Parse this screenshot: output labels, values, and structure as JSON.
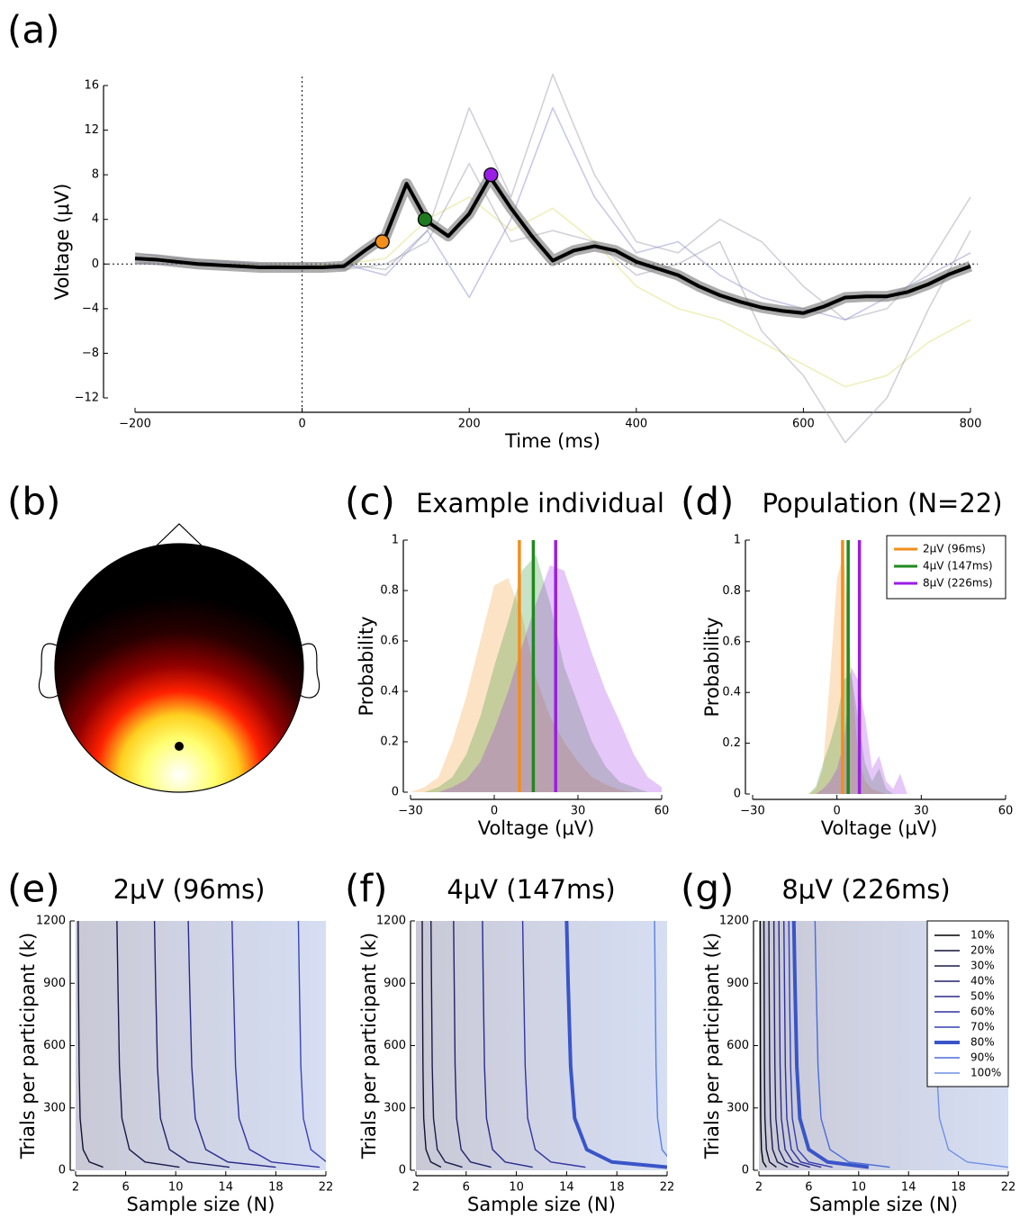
{
  "chart_data": [
    {
      "type": "line",
      "panel_label": "(a)",
      "x_label": "Time (ms)",
      "y_label": "Voltage (μV)",
      "xlim": [
        -200,
        800
      ],
      "ylim": [
        -12,
        16
      ],
      "xticks": [
        {
          "value": -200,
          "label": "−200"
        },
        0,
        200,
        400,
        600,
        800
      ],
      "yticks": [
        {
          "value": -12,
          "label": "−12"
        },
        {
          "value": -8,
          "label": "−8"
        },
        {
          "value": -4,
          "label": "−4"
        },
        0,
        4,
        8,
        12,
        16
      ],
      "reference_lines": {
        "x": 0,
        "y": 0
      },
      "series": [
        {
          "color": "#9a9aaa",
          "opacity": 0.45,
          "x": [
            -200,
            -150,
            -100,
            -50,
            0,
            50,
            100,
            150,
            200,
            250,
            300,
            350,
            400,
            450,
            500,
            550,
            600,
            650,
            700,
            750,
            800
          ],
          "values": [
            1,
            0.5,
            0,
            -0.3,
            -0.5,
            0,
            -0.5,
            3,
            14,
            6,
            17,
            8,
            2,
            1,
            4,
            2,
            -2,
            -5,
            -4,
            0,
            6
          ]
        },
        {
          "color": "#e0e07a",
          "opacity": 0.5,
          "x": [
            -200,
            -150,
            -100,
            -50,
            0,
            50,
            100,
            150,
            200,
            250,
            300,
            350,
            400,
            450,
            500,
            550,
            600,
            650,
            700,
            750,
            800
          ],
          "values": [
            0.5,
            0.3,
            0,
            0,
            -0.2,
            0,
            0.5,
            4,
            6,
            3,
            5,
            2,
            -2,
            -4,
            -5,
            -7,
            -9,
            -11,
            -10,
            -7,
            -5
          ]
        },
        {
          "color": "#8888cc",
          "opacity": 0.45,
          "x": [
            -200,
            -150,
            -100,
            -50,
            0,
            50,
            100,
            150,
            200,
            250,
            300,
            350,
            400,
            450,
            500,
            550,
            600,
            650,
            700,
            750,
            800
          ],
          "values": [
            0,
            0,
            0.2,
            0,
            -0.3,
            0,
            -1,
            3,
            -3,
            4,
            14,
            6,
            1,
            2,
            -1,
            -3,
            -4,
            -5,
            -3,
            -1,
            1
          ]
        },
        {
          "color": "#9a9aaa",
          "opacity": 0.45,
          "x": [
            -200,
            -150,
            -100,
            -50,
            0,
            50,
            100,
            150,
            200,
            250,
            300,
            350,
            400,
            450,
            500,
            550,
            600,
            650,
            700,
            750,
            800
          ],
          "values": [
            0,
            0.5,
            0.3,
            0,
            0,
            -0.5,
            0,
            2,
            9,
            2,
            3,
            2,
            -1,
            0,
            2,
            -6,
            -10,
            -16,
            -12,
            -4,
            3
          ]
        },
        {
          "color": "#000000",
          "opacity": 1,
          "bold": true,
          "x": [
            -200,
            -175,
            -150,
            -125,
            -100,
            -75,
            -50,
            -25,
            0,
            25,
            50,
            75,
            100,
            125,
            150,
            175,
            200,
            225,
            250,
            275,
            300,
            325,
            350,
            375,
            400,
            425,
            450,
            475,
            500,
            525,
            550,
            575,
            600,
            625,
            650,
            675,
            700,
            725,
            750,
            775,
            800
          ],
          "values": [
            0.5,
            0.4,
            0.2,
            0,
            -0.1,
            -0.2,
            -0.3,
            -0.3,
            -0.3,
            -0.3,
            -0.2,
            1.2,
            2.5,
            7.2,
            3.8,
            2.5,
            4.5,
            7.8,
            5,
            2.5,
            0.3,
            1.2,
            1.6,
            1.2,
            0.2,
            -0.4,
            -1,
            -2,
            -2.8,
            -3.4,
            -3.9,
            -4.2,
            -4.4,
            -3.8,
            -3,
            -2.9,
            -2.9,
            -2.5,
            -1.8,
            -0.9,
            -0.2
          ]
        }
      ],
      "points": {
        "x": [
          96,
          147,
          226
        ],
        "values": [
          2,
          4,
          8
        ],
        "colors": [
          "#f28e1c",
          "#1e7a1e",
          "#9a1ee6"
        ]
      }
    },
    {
      "type": "topomap",
      "panel_label": "(b)"
    },
    {
      "type": "density",
      "panel_label": "(c)",
      "title": "Example individual",
      "x_label": "Voltage (μV)",
      "y_label": "Probability",
      "xlim": [
        -30,
        60
      ],
      "ylim": [
        0,
        1
      ],
      "xticks": [
        {
          "value": -30,
          "label": "−30"
        },
        0,
        30,
        60
      ],
      "yticks": [
        0,
        0.2,
        0.4,
        0.6,
        0.8,
        1
      ],
      "x": [
        -30,
        -25,
        -20,
        -15,
        -10,
        -5,
        0,
        5,
        10,
        15,
        20,
        25,
        30,
        35,
        40,
        45,
        50,
        55,
        60
      ],
      "series": [
        {
          "color": "#f28e1c",
          "marker": 9,
          "values": [
            0,
            0.02,
            0.06,
            0.2,
            0.38,
            0.6,
            0.82,
            0.85,
            0.7,
            0.45,
            0.3,
            0.2,
            0.12,
            0.06,
            0.03,
            0.01,
            0,
            0,
            0
          ]
        },
        {
          "color": "#1e8a1e",
          "marker": 14,
          "values": [
            0,
            0,
            0.02,
            0.06,
            0.15,
            0.3,
            0.5,
            0.68,
            0.88,
            0.94,
            0.75,
            0.5,
            0.35,
            0.2,
            0.1,
            0.04,
            0.02,
            0,
            0
          ]
        },
        {
          "color": "#9a1ee6",
          "marker": 22,
          "values": [
            0,
            0,
            0,
            0.02,
            0.05,
            0.12,
            0.25,
            0.4,
            0.58,
            0.75,
            0.9,
            0.88,
            0.72,
            0.55,
            0.4,
            0.28,
            0.15,
            0.06,
            0.02
          ]
        }
      ]
    },
    {
      "type": "density",
      "panel_label": "(d)",
      "title": "Population (N=22)",
      "x_label": "Voltage (μV)",
      "y_label": "Probability",
      "xlim": [
        -30,
        60
      ],
      "ylim": [
        0,
        1
      ],
      "xticks": [
        {
          "value": -30,
          "label": "−30"
        },
        0,
        30,
        60
      ],
      "yticks": [
        0,
        0.2,
        0.4,
        0.6,
        0.8,
        1
      ],
      "legend": "top-right",
      "x": [
        -10,
        -7.5,
        -5,
        -2.5,
        0,
        2.5,
        5,
        7.5,
        10,
        12.5,
        15,
        17.5,
        20,
        22.5,
        25
      ],
      "series": [
        {
          "name": "2μV (96ms)",
          "color": "#f28e1c",
          "marker": 2,
          "values": [
            0,
            0.02,
            0.1,
            0.45,
            0.85,
            0.95,
            0.5,
            0.15,
            0.05,
            0.02,
            0.01,
            0,
            0,
            0,
            0
          ]
        },
        {
          "name": "4μV (147ms)",
          "color": "#1e8a1e",
          "marker": 4,
          "values": [
            0,
            0.03,
            0.12,
            0.2,
            0.3,
            0.45,
            0.48,
            0.3,
            0.12,
            0.05,
            0.1,
            0.02,
            0,
            0,
            0
          ]
        },
        {
          "name": "8μV (226ms)",
          "color": "#9a1ee6",
          "marker": 8,
          "values": [
            0,
            0,
            0.02,
            0.05,
            0.1,
            0.2,
            0.5,
            0.45,
            0.3,
            0.1,
            0.15,
            0.05,
            0.02,
            0.08,
            0
          ]
        }
      ]
    },
    {
      "type": "contour",
      "panel_label": "(e)",
      "title": "2μV (96ms)",
      "x_label": "Sample size (N)",
      "y_label": "Trials per participant (k)",
      "xlim": [
        2,
        22
      ],
      "ylim": [
        0,
        1200
      ],
      "xticks": [
        2,
        6,
        10,
        14,
        18,
        22
      ],
      "yticks": [
        0,
        300,
        600,
        900,
        1200
      ],
      "y": [
        15,
        40,
        100,
        250,
        500,
        900,
        1200
      ],
      "series": [
        {
          "color": "#111133",
          "x": [
            4.2,
            3.1,
            2.6,
            2.36,
            2.28,
            2.23,
            2.2
          ]
        },
        {
          "color": "#1a1a4a",
          "x": [
            10.3,
            7.55,
            6.3,
            5.7,
            5.5,
            5.38,
            5.3
          ]
        },
        {
          "color": "#22226a",
          "x": [
            14.3,
            11,
            9.5,
            8.78,
            8.54,
            8.39,
            8.3
          ]
        },
        {
          "color": "#2a2a8a",
          "x": [
            18,
            14.15,
            12.4,
            11.56,
            11.28,
            11.11,
            11
          ]
        },
        {
          "color": "#3333a0",
          "x": [
            21.5,
            17.65,
            15.9,
            15.06,
            14.78,
            14.61,
            14.5
          ]
        },
        {
          "color": "#3a44b8",
          "x": [
            24.8,
            22.05,
            20.8,
            20.2,
            20,
            19.88,
            19.8
          ]
        }
      ]
    },
    {
      "type": "contour",
      "panel_label": "(f)",
      "title": "4μV (147ms)",
      "x_label": "Sample size (N)",
      "y_label": "Trials per participant (k)",
      "xlim": [
        2,
        22
      ],
      "ylim": [
        0,
        1200
      ],
      "xticks": [
        2,
        6,
        10,
        14,
        18,
        22
      ],
      "yticks": [
        0,
        300,
        600,
        900,
        1200
      ],
      "y": [
        15,
        40,
        100,
        250,
        500,
        900,
        1200
      ],
      "series": [
        {
          "color": "#111133",
          "x": [
            4,
            3.18,
            2.8,
            2.62,
            2.56,
            2.52,
            2.5
          ]
        },
        {
          "color": "#1a1a4a",
          "x": [
            5.7,
            4.33,
            3.7,
            3.4,
            3.3,
            3.24,
            3.2
          ]
        },
        {
          "color": "#22226a",
          "x": [
            8,
            6.35,
            5.6,
            5.24,
            5.12,
            5.05,
            5
          ]
        },
        {
          "color": "#2a2a8a",
          "x": [
            11.3,
            9.1,
            8.1,
            7.62,
            7.46,
            7.36,
            7.3
          ]
        },
        {
          "color": "#3333a0",
          "x": [
            15.5,
            12.75,
            11.5,
            10.9,
            10.7,
            10.58,
            10.5
          ]
        },
        {
          "color": "#3a55c8",
          "bold": true,
          "x": [
            22,
            17.6,
            15.6,
            14.64,
            14.32,
            14.12,
            14
          ]
        },
        {
          "color": "#5b80e0",
          "x": [
            24,
            22.35,
            21.6,
            21.24,
            21.12,
            21.05,
            21
          ]
        }
      ]
    },
    {
      "type": "contour",
      "panel_label": "(g)",
      "title": "8μV (226ms)",
      "x_label": "Sample size (N)",
      "y_label": "Trials per participant (k)",
      "xlim": [
        2,
        22
      ],
      "ylim": [
        0,
        1200
      ],
      "xticks": [
        2,
        6,
        10,
        14,
        18,
        22
      ],
      "yticks": [
        0,
        300,
        600,
        900,
        1200
      ],
      "legend": "top-right",
      "y": [
        15,
        40,
        100,
        250,
        500,
        900,
        1200
      ],
      "series": [
        {
          "name": "10%",
          "color": "#000000",
          "x": [
            2.6,
            2.33,
            2.2,
            2.14,
            2.12,
            2.11,
            2.1
          ]
        },
        {
          "name": "20%",
          "color": "#111133",
          "x": [
            3.4,
            2.85,
            2.6,
            2.48,
            2.44,
            2.42,
            2.4
          ]
        },
        {
          "name": "30%",
          "color": "#1a1a4a",
          "x": [
            4.3,
            3.48,
            3.1,
            2.92,
            2.86,
            2.82,
            2.8
          ]
        },
        {
          "name": "40%",
          "color": "#22226a",
          "x": [
            5.2,
            4.1,
            3.6,
            3.36,
            3.28,
            3.23,
            3.2
          ]
        },
        {
          "name": "50%",
          "color": "#2a2a8a",
          "x": [
            6.1,
            4.73,
            4.1,
            3.8,
            3.7,
            3.64,
            3.6
          ]
        },
        {
          "name": "60%",
          "color": "#3030a0",
          "x": [
            7,
            5.35,
            4.6,
            4.24,
            4.12,
            4.05,
            4
          ]
        },
        {
          "name": "70%",
          "color": "#3540b4",
          "x": [
            7.9,
            5.98,
            5.1,
            4.68,
            4.54,
            4.45,
            4.4
          ]
        },
        {
          "name": "80%",
          "color": "#3a55c8",
          "bold": true,
          "x": [
            10.8,
            7.5,
            6,
            5.28,
            5.04,
            4.89,
            4.8
          ]
        },
        {
          "name": "90%",
          "color": "#4a6cd8",
          "x": [
            12.5,
            9.2,
            7.7,
            6.98,
            6.74,
            6.59,
            6.5
          ]
        },
        {
          "name": "100%",
          "color": "#6f90e6",
          "x": [
            22,
            18.7,
            17.2,
            16.48,
            16.24,
            16.09,
            16
          ]
        }
      ]
    }
  ]
}
